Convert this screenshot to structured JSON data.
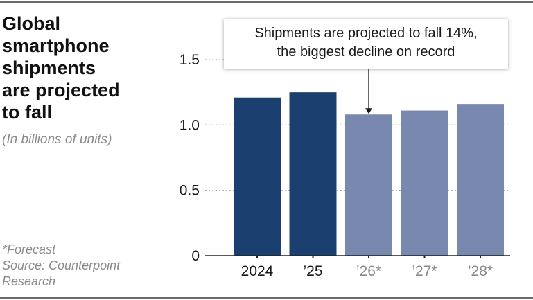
{
  "header": {
    "title_lines": [
      "Global",
      "smartphone",
      "shipments",
      "are projected",
      "to fall"
    ],
    "subtitle": "(In billions of units)"
  },
  "footnote": {
    "lines": [
      "*Forecast",
      "Source: Counterpoint",
      "Research"
    ]
  },
  "annotation": {
    "lines": [
      "Shipments are projected to fall 14%,",
      "the biggest decline on record"
    ],
    "target_category": "’26*"
  },
  "colors": {
    "actual": "#1b3f6e",
    "forecast": "#7888ae",
    "gridline": "#b5b5b5",
    "axis_text_dark": "#1a1a1a",
    "axis_text_muted": "#8a8a8a"
  },
  "chart_data": {
    "type": "bar",
    "categories": [
      "2024",
      "’25",
      "’26*",
      "’27*",
      "’28*"
    ],
    "values": [
      1.21,
      1.25,
      1.08,
      1.11,
      1.16
    ],
    "forecast": [
      false,
      false,
      true,
      true,
      true
    ],
    "ylim": [
      0,
      1.5
    ],
    "yticks": [
      {
        "value": 0,
        "label": "0"
      },
      {
        "value": 0.5,
        "label": "0.5"
      },
      {
        "value": 1.0,
        "label": "1.0"
      },
      {
        "value": 1.5,
        "label": "1.5"
      }
    ],
    "grid": true,
    "xlabel": "",
    "ylabel": ""
  }
}
